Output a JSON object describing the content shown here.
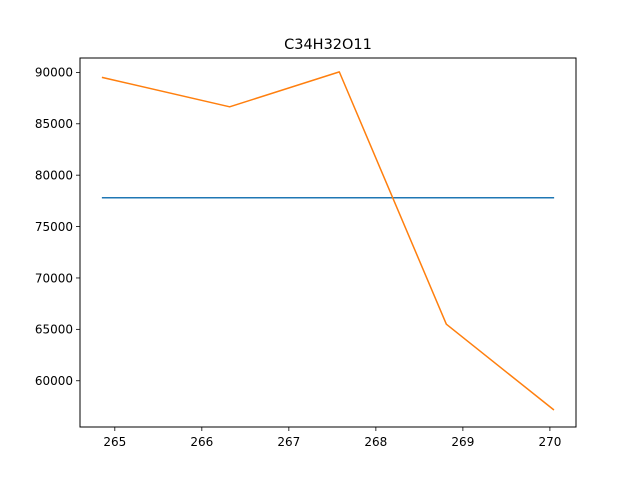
{
  "chart_data": {
    "type": "line",
    "title": "C34H32O11",
    "xlabel": "",
    "ylabel": "",
    "xlim": [
      264.6,
      270.3
    ],
    "ylim": [
      55500,
      91400
    ],
    "x_ticks": [
      265,
      266,
      267,
      268,
      269,
      270
    ],
    "y_ticks": [
      60000,
      65000,
      70000,
      75000,
      80000,
      85000,
      90000
    ],
    "grid": false,
    "series": [
      {
        "color": "#1f77b4",
        "x": [
          264.86,
          270.04
        ],
        "y": [
          77800,
          77800
        ]
      },
      {
        "color": "#ff7f0e",
        "x": [
          264.86,
          266.32,
          267.58,
          268.81,
          270.04
        ],
        "y": [
          89500,
          86650,
          90050,
          65500,
          57200
        ]
      }
    ]
  }
}
